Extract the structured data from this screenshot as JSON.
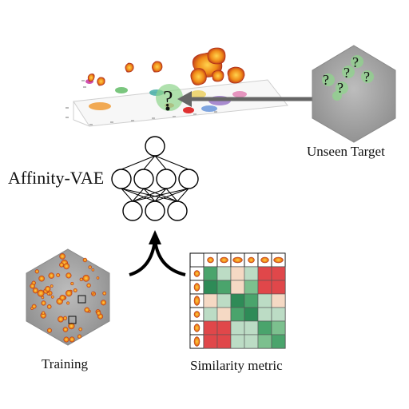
{
  "labels": {
    "unseen_target": "Unseen Target",
    "affinity_vae": "Affinity-VAE",
    "training": "Training",
    "similarity_metric": "Similarity metric"
  },
  "glyphs": {
    "question": "?"
  },
  "network": {
    "layers": [
      1,
      4,
      3
    ]
  },
  "similarity_matrix": {
    "size": 6,
    "cells": [
      [
        "g2",
        "lg",
        "pk",
        "lg",
        "r",
        "r"
      ],
      [
        "g1",
        "g2",
        "pk",
        "g3",
        "r",
        "r"
      ],
      [
        "pk",
        "lg",
        "g1",
        "g2",
        "lg",
        "pk"
      ],
      [
        "lg",
        "pk",
        "g2",
        "g1",
        "lg",
        "lg"
      ],
      [
        "r",
        "r",
        "lg",
        "lg",
        "g2",
        "g3"
      ],
      [
        "r",
        "r",
        "lg",
        "lg",
        "g3",
        "g2"
      ]
    ],
    "colors": {
      "g1": "#2e8b57",
      "g2": "#4aa46c",
      "g3": "#7cc08e",
      "lg": "#bcdcc5",
      "pk": "#f5d9c4",
      "r": "#e0474a"
    }
  },
  "colors": {
    "hex_fill": "#a7a7a7",
    "blob_orange": "#f08a18",
    "blob_red": "#c0301c",
    "arrow": "#666666"
  }
}
